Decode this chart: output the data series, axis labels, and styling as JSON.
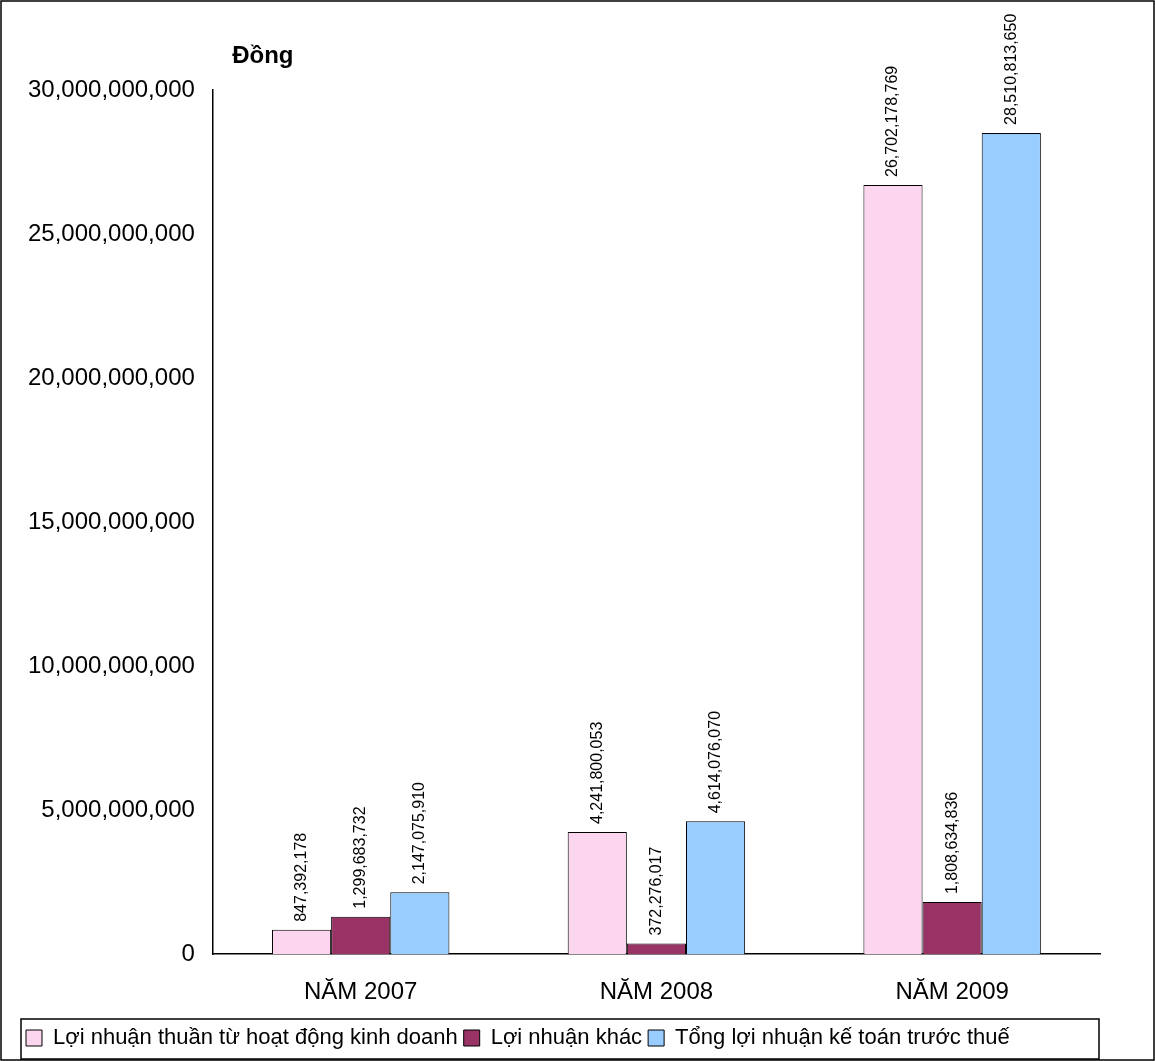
{
  "chart_data": {
    "type": "bar",
    "ylabel": "Đồng",
    "categories": [
      "NĂM 2007",
      "NĂM 2008",
      "NĂM 2009"
    ],
    "series": [
      {
        "name": "Lợi nhuận thuần từ hoạt động kinh doanh",
        "color": "#fcd6ee",
        "values": [
          847392178,
          4241800053,
          26702178769
        ],
        "value_labels": [
          "847,392,178",
          "4,241,800,053",
          "26,702,178,769"
        ]
      },
      {
        "name": "Lợi nhuận khác",
        "color": "#993366",
        "values": [
          1299683732,
          372276017,
          1808634836
        ],
        "value_labels": [
          "1,299,683,732",
          "372,276,017",
          "1,808,634,836"
        ]
      },
      {
        "name": "Tổng lợi nhuận kế toán trước thuế",
        "color": "#99ccff",
        "values": [
          2147075910,
          4614076070,
          28510813650
        ],
        "value_labels": [
          "2,147,075,910",
          "4,614,076,070",
          "28,510,813,650"
        ]
      }
    ],
    "ylim": [
      0,
      30000000000
    ],
    "yticks": [
      0,
      {
        "value": 5000000000,
        "label": "5,000,000,000"
      },
      {
        "value": 10000000000,
        "label": "10,000,000,000"
      },
      {
        "value": 15000000000,
        "label": "15,000,000,000"
      },
      {
        "value": 20000000000,
        "label": "20,000,000,000"
      },
      {
        "value": 25000000000,
        "label": "25,000,000,000"
      },
      {
        "value": 30000000000,
        "label": "30,000,000,000"
      }
    ],
    "grid": false,
    "legend": "bottom"
  }
}
